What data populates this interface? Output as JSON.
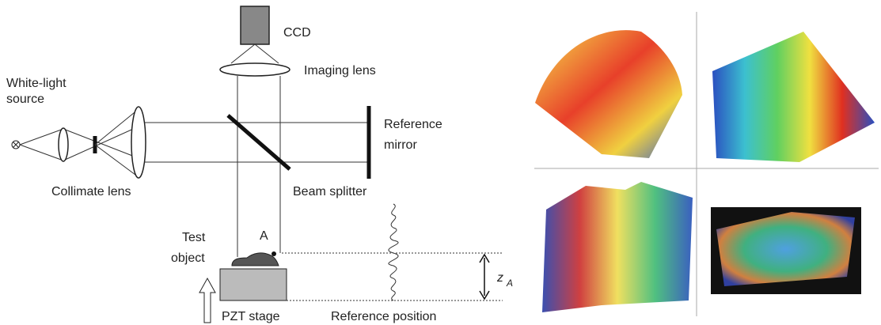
{
  "labels": {
    "ccd": "CCD",
    "imaging_lens": "Imaging lens",
    "source": [
      "White-light",
      "source"
    ],
    "reference_mirror": [
      "Reference",
      "mirror"
    ],
    "collimate_lens": "Collimate lens",
    "beam_splitter": "Beam splitter",
    "test_object": [
      "Test",
      "object"
    ],
    "point": "A",
    "height": {
      "label": "z",
      "subscript": "A"
    },
    "stage": "PZT stage",
    "reference_position": "Reference position"
  }
}
